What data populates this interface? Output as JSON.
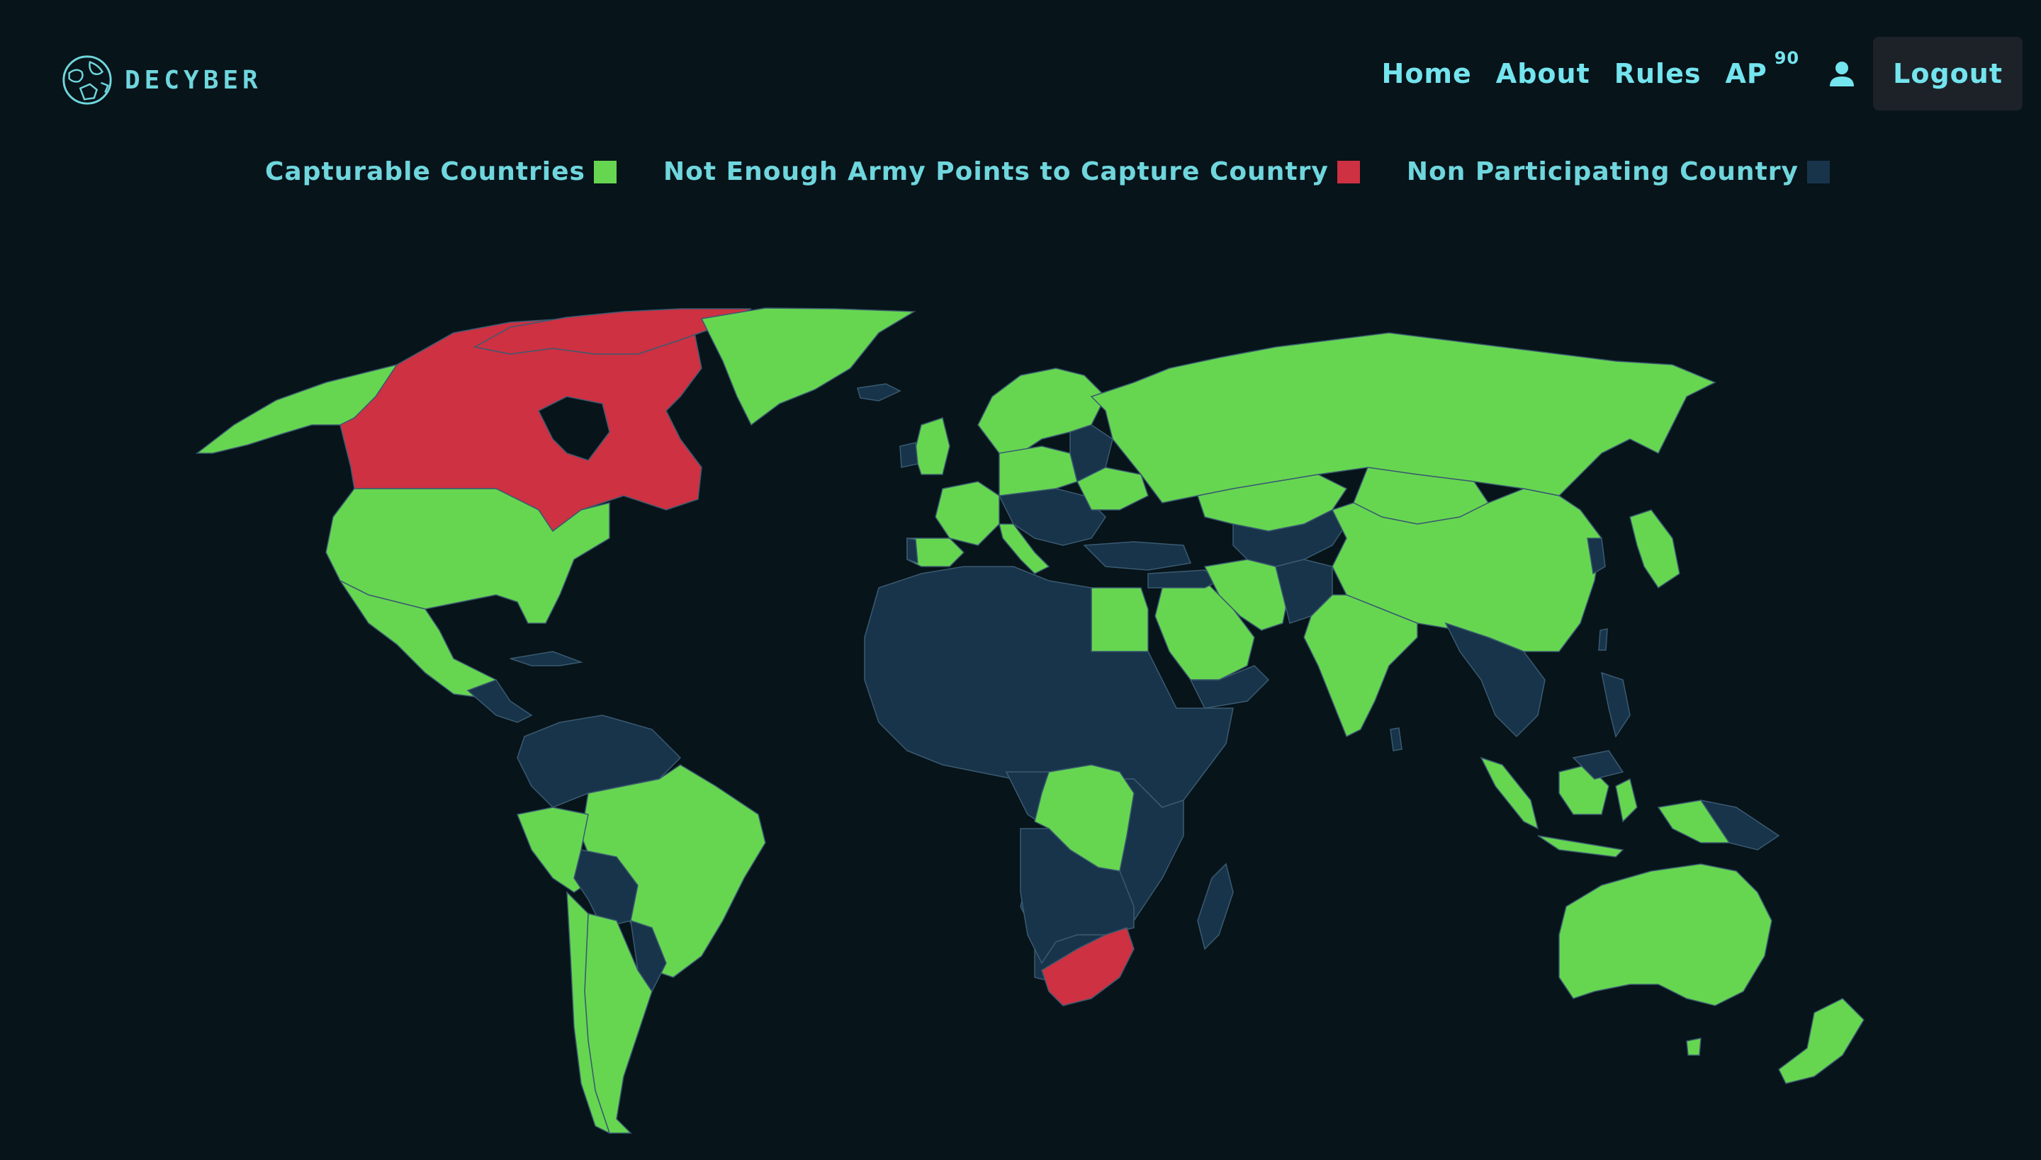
{
  "brand": {
    "name": "DECYBER",
    "icon": "globe-shield-icon"
  },
  "nav": {
    "home": "Home",
    "about": "About",
    "rules": "Rules",
    "ap_label": "AP",
    "ap_value": "90",
    "user_icon": "user-icon",
    "logout": "Logout"
  },
  "legend": {
    "capturable": "Capturable Countries",
    "not_enough": "Not Enough Army Points to Capture Country",
    "non_participating": "Non Participating Country"
  },
  "colors": {
    "background": "#07141a",
    "accent": "#74e4ee",
    "capturable": "#66d651",
    "not_enough": "#cd3142",
    "non_participating": "#18344b"
  },
  "map": {
    "capturable_countries": [
      "Alaska",
      "United States",
      "Mexico",
      "Greenland",
      "Brazil",
      "Colombia",
      "Peru",
      "Argentina",
      "Chile",
      "Russia",
      "China",
      "India",
      "Egypt",
      "Saudi Arabia",
      "Iran",
      "DR Congo",
      "Australia",
      "New Zealand",
      "Japan",
      "Indonesia",
      "France",
      "Spain",
      "Germany",
      "Poland",
      "United Kingdom",
      "Sweden",
      "Norway",
      "Finland",
      "Ukraine",
      "Turkey",
      "Italy",
      "Kazakhstan",
      "Mongolia",
      "Papua New Guinea",
      "Philippines"
    ],
    "not_enough_countries": [
      "Canada",
      "South Africa"
    ],
    "non_participating_note": "All other countries"
  }
}
